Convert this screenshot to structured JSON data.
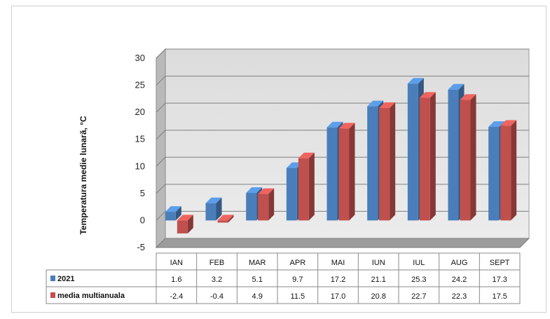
{
  "chart_data": {
    "type": "bar",
    "ylabel": "Temperatura medie lunară, °C",
    "ylim": [
      -5,
      30
    ],
    "yticks": [
      30,
      25,
      20,
      15,
      10,
      5,
      0,
      -5
    ],
    "categories": [
      "IAN",
      "FEB",
      "MAR",
      "APR",
      "MAI",
      "IUN",
      "IUL",
      "AUG",
      "SEPT"
    ],
    "grid": true,
    "legend": "table-left",
    "series": [
      {
        "name": "2021",
        "color": "#4a7ebb",
        "values": [
          1.6,
          3.2,
          5.1,
          9.7,
          17.2,
          21.1,
          25.3,
          24.2,
          17.3
        ],
        "labels": [
          "1.6",
          "3.2",
          "5.1",
          "9.7",
          "17.2",
          "21.1",
          "25.3",
          "24.2",
          "17.3"
        ]
      },
      {
        "name": "media multianuala",
        "color": "#c0504d",
        "values": [
          -2.4,
          -0.4,
          4.9,
          11.5,
          17.0,
          20.8,
          22.7,
          22.3,
          17.5
        ],
        "labels": [
          "-2.4",
          "-0.4",
          "4.9",
          "11.5",
          "17.0",
          "20.8",
          "22.7",
          "22.3",
          "17.5"
        ]
      }
    ]
  }
}
